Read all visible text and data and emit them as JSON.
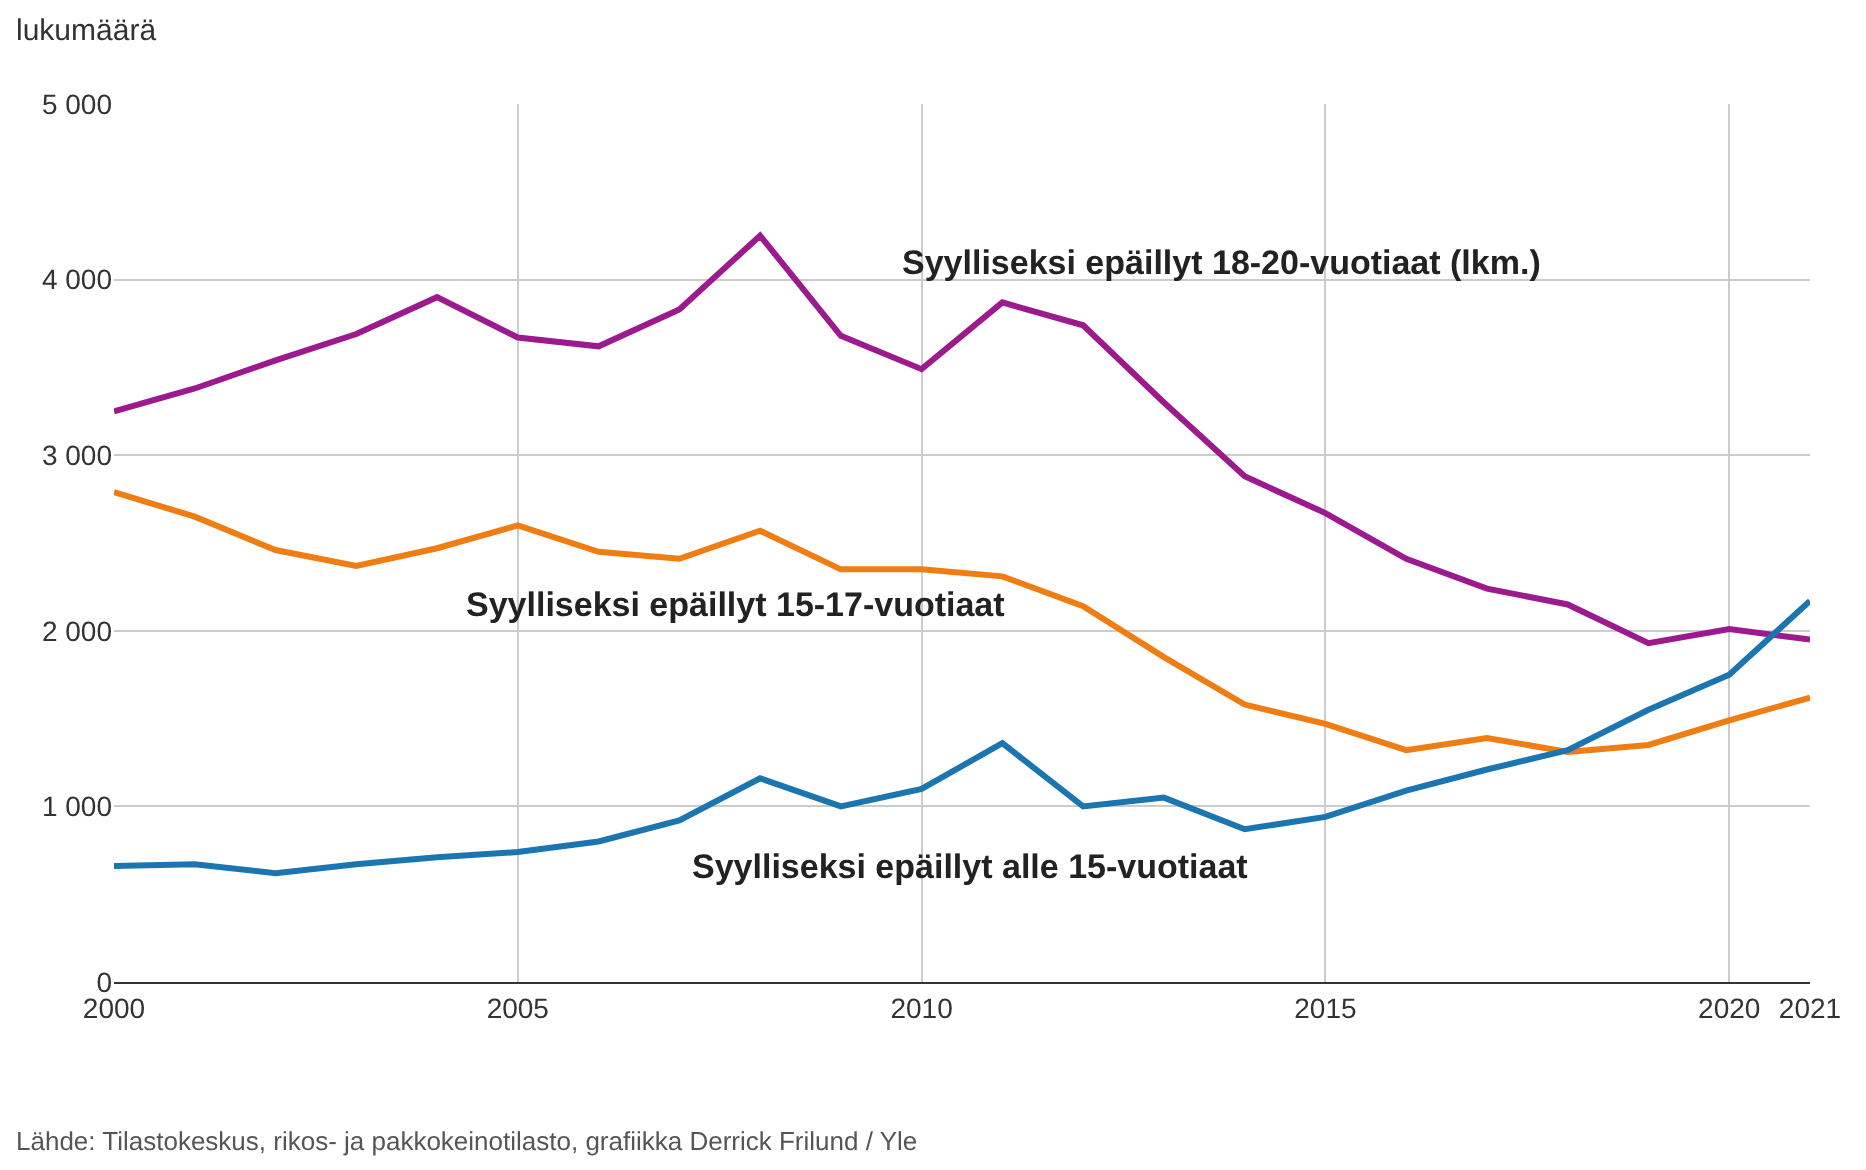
{
  "chart_data": {
    "type": "line",
    "ylabel": "lukumäärä",
    "x": [
      2000,
      2001,
      2002,
      2003,
      2004,
      2005,
      2006,
      2007,
      2008,
      2009,
      2010,
      2011,
      2012,
      2013,
      2014,
      2015,
      2016,
      2017,
      2018,
      2019,
      2020,
      2021
    ],
    "series": [
      {
        "name": "Syylliseksi epäillyt 18-20-vuotiaat (lkm.)",
        "color": "#9c1a8e",
        "values": [
          3250,
          3380,
          3540,
          3690,
          3900,
          3670,
          3620,
          3830,
          4250,
          3680,
          3490,
          3870,
          3740,
          3300,
          2880,
          2670,
          2410,
          2240,
          2150,
          1930,
          2010,
          1950
        ]
      },
      {
        "name": "Syylliseksi epäillyt 15-17-vuotiaat",
        "color": "#f07d12",
        "values": [
          2790,
          2650,
          2460,
          2370,
          2470,
          2600,
          2450,
          2410,
          2570,
          2350,
          2350,
          2310,
          2140,
          1850,
          1580,
          1470,
          1320,
          1390,
          1310,
          1350,
          1490,
          1620
        ]
      },
      {
        "name": "Syylliseksi epäillyt alle 15-vuotiaat",
        "color": "#1b75b0",
        "values": [
          660,
          670,
          620,
          670,
          710,
          740,
          800,
          920,
          1160,
          1000,
          1100,
          1360,
          1000,
          1050,
          870,
          940,
          1090,
          1210,
          1320,
          1550,
          1750,
          2170
        ]
      }
    ],
    "xlim": [
      2000,
      2021
    ],
    "xticks": [
      2000,
      2005,
      2010,
      2015,
      2020,
      2021
    ],
    "ylim": [
      0,
      5000
    ],
    "yticks": [
      0,
      {
        "value": 1000,
        "label": "1 000"
      },
      {
        "value": 2000,
        "label": "2 000"
      },
      {
        "value": 3000,
        "label": "3 000"
      },
      {
        "value": 4000,
        "label": "4 000"
      },
      {
        "value": 5000,
        "label": "5 000"
      }
    ],
    "grid": true,
    "legend": false,
    "marker": "none",
    "line_style": "solid",
    "annotations": [
      "Lähde: Tilastokeskus, rikos- ja pakkokeinotilasto, grafiikka Derrick Frilund / Yle"
    ]
  }
}
